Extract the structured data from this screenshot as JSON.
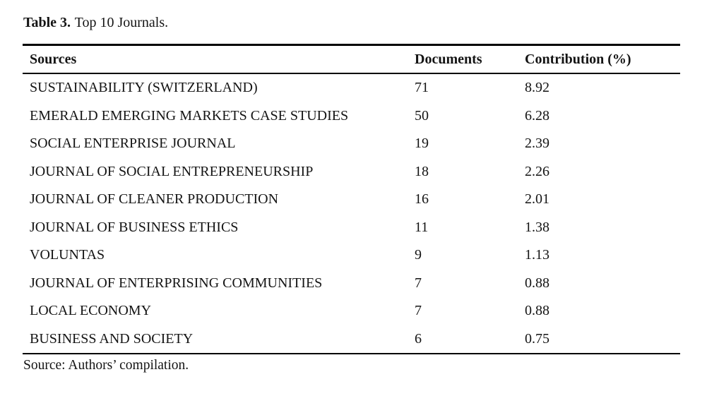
{
  "page": {
    "background": "#ffffff",
    "text_color": "#141414",
    "rule_color": "#000000"
  },
  "caption": {
    "label": "Table 3.",
    "title": "Top 10 Journals."
  },
  "table": {
    "columns": [
      {
        "key": "source",
        "label": "Sources"
      },
      {
        "key": "documents",
        "label": "Documents"
      },
      {
        "key": "contribution",
        "label": "Contribution (%)"
      }
    ],
    "rows": [
      {
        "source": "SUSTAINABILITY (SWITZERLAND)",
        "documents": "71",
        "contribution": "8.92"
      },
      {
        "source": "EMERALD EMERGING MARKETS CASE STUDIES",
        "documents": "50",
        "contribution": "6.28"
      },
      {
        "source": "SOCIAL ENTERPRISE JOURNAL",
        "documents": "19",
        "contribution": "2.39"
      },
      {
        "source": "JOURNAL OF SOCIAL ENTREPRENEURSHIP",
        "documents": "18",
        "contribution": "2.26"
      },
      {
        "source": "JOURNAL OF CLEANER PRODUCTION",
        "documents": "16",
        "contribution": "2.01"
      },
      {
        "source": "JOURNAL OF BUSINESS ETHICS",
        "documents": "11",
        "contribution": "1.38"
      },
      {
        "source": "VOLUNTAS",
        "documents": "9",
        "contribution": "1.13"
      },
      {
        "source": "JOURNAL OF ENTERPRISING COMMUNITIES",
        "documents": "7",
        "contribution": "0.88"
      },
      {
        "source": "LOCAL ECONOMY",
        "documents": "7",
        "contribution": "0.88"
      },
      {
        "source": "BUSINESS AND SOCIETY",
        "documents": "6",
        "contribution": "0.75"
      }
    ]
  },
  "footnote": "Source: Authors’ compilation."
}
